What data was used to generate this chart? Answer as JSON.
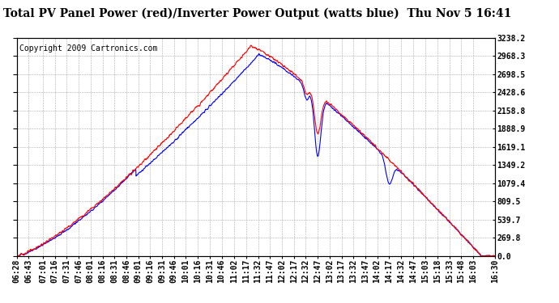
{
  "title": "Total PV Panel Power (red)/Inverter Power Output (watts blue)  Thu Nov 5 16:41",
  "copyright": "Copyright 2009 Cartronics.com",
  "background_color": "#ffffff",
  "plot_bg_color": "#ffffff",
  "grid_color": "#aaaaaa",
  "ymin": 0.0,
  "ymax": 3238.2,
  "yticks": [
    0.0,
    269.8,
    539.7,
    809.5,
    1079.4,
    1349.2,
    1619.1,
    1888.9,
    2158.8,
    2428.6,
    2698.5,
    2968.3,
    3238.2
  ],
  "x_labels": [
    "06:28",
    "06:43",
    "07:01",
    "07:16",
    "07:31",
    "07:46",
    "08:01",
    "08:16",
    "08:31",
    "08:46",
    "09:01",
    "09:16",
    "09:31",
    "09:46",
    "10:01",
    "10:16",
    "10:31",
    "10:46",
    "11:02",
    "11:17",
    "11:32",
    "11:47",
    "12:02",
    "12:17",
    "12:32",
    "12:47",
    "13:02",
    "13:17",
    "13:32",
    "13:47",
    "14:02",
    "14:17",
    "14:32",
    "14:47",
    "15:03",
    "15:18",
    "15:33",
    "15:48",
    "16:03",
    "16:30"
  ],
  "red_color": "#ff0000",
  "blue_color": "#0000ff",
  "title_fontsize": 10,
  "tick_fontsize": 7,
  "copyright_fontsize": 7,
  "line_width": 0.8
}
